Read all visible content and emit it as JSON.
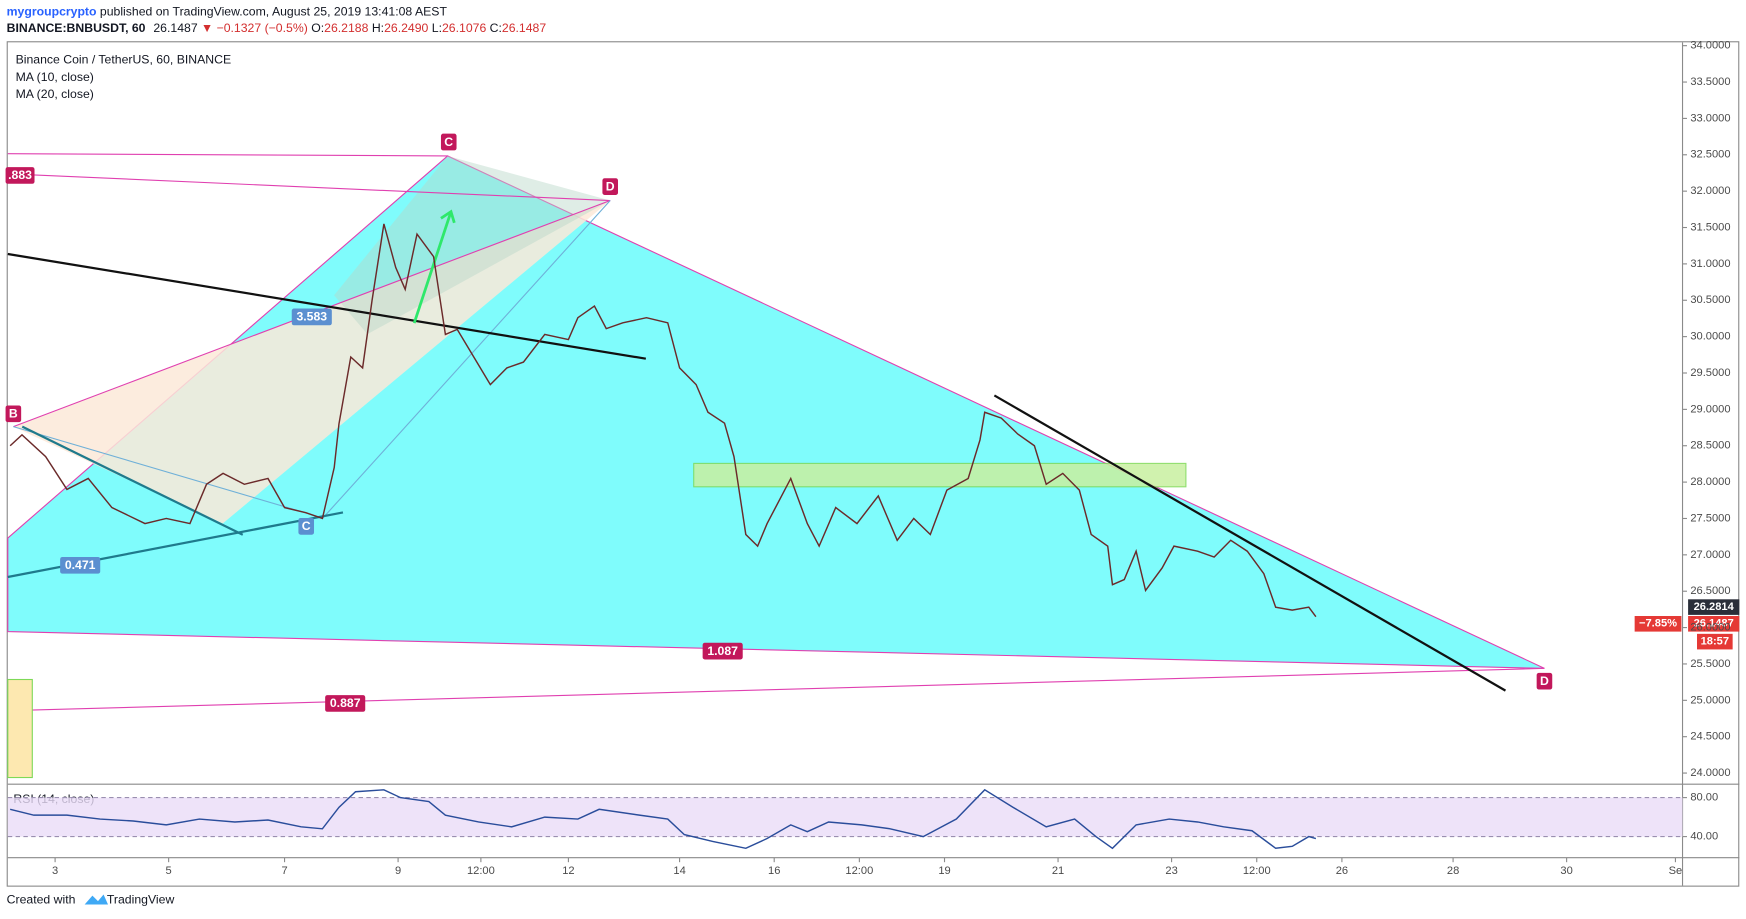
{
  "header": {
    "author": "mygroupcrypto",
    "published": "published on TradingView.com, August 25, 2019 13:41:08 AEST",
    "symbol": "BINANCE:BNBUSDT, 60",
    "last": "26.1487",
    "change": "▼ −0.1327 (−0.5%)",
    "ohlc": [
      {
        "label": "O:",
        "value": "26.2188"
      },
      {
        "label": "H:",
        "value": "26.2490"
      },
      {
        "label": "L:",
        "value": "26.1076"
      },
      {
        "label": "C:",
        "value": "26.1487"
      }
    ]
  },
  "footer": {
    "created": "Created with",
    "brand": "TradingView"
  },
  "chart_data": [
    {
      "type": "line",
      "title": "Binance Coin / TetherUS, 60, BINANCE",
      "indicators": [
        "MA (10, close)",
        "MA (20, close)"
      ],
      "color": "#6b2a2a",
      "grid": false,
      "x": [
        1,
        6,
        16,
        25,
        34,
        44,
        58,
        67,
        77,
        84,
        91,
        100,
        110,
        117,
        126,
        133,
        138,
        140,
        145,
        150,
        154,
        159,
        164,
        168,
        173,
        180,
        185,
        190,
        197,
        204,
        211,
        218,
        227,
        237,
        241,
        248,
        253,
        260,
        270,
        279,
        284,
        291,
        296,
        303,
        307,
        312,
        317,
        321,
        331,
        338,
        343,
        350,
        359,
        368,
        376,
        383,
        390,
        397,
        406,
        411,
        413,
        420,
        427,
        434,
        439,
        446,
        453,
        458,
        465,
        467,
        472,
        477,
        481,
        488,
        493,
        503,
        510,
        517,
        524,
        531,
        536,
        543,
        550,
        553
      ],
      "values": [
        28.5,
        28.65,
        28.35,
        27.9,
        28.05,
        27.65,
        27.43,
        27.5,
        27.43,
        27.97,
        28.12,
        27.97,
        28.05,
        27.65,
        27.58,
        27.5,
        28.2,
        28.8,
        29.72,
        29.57,
        30.5,
        31.55,
        30.95,
        30.65,
        31.41,
        31.1,
        30.03,
        30.1,
        29.72,
        29.34,
        29.57,
        29.65,
        30.03,
        29.96,
        30.26,
        30.42,
        30.11,
        30.19,
        30.26,
        30.19,
        29.57,
        29.34,
        28.96,
        28.81,
        28.35,
        27.28,
        27.12,
        27.43,
        28.05,
        27.43,
        27.12,
        27.65,
        27.43,
        27.81,
        27.2,
        27.5,
        27.28,
        27.89,
        28.05,
        28.58,
        28.96,
        28.88,
        28.66,
        28.5,
        27.97,
        28.12,
        27.89,
        27.28,
        27.12,
        26.59,
        26.66,
        27.05,
        26.51,
        26.82,
        27.12,
        27.05,
        26.97,
        27.2,
        27.05,
        26.74,
        26.28,
        26.24,
        26.28,
        26.15
      ],
      "xlim": [
        0,
        708
      ],
      "ylim": [
        23.862,
        34.046
      ],
      "yticks": [
        {
          "value": 24,
          "label": "24.0000"
        },
        {
          "value": 24.5,
          "label": "24.5000"
        },
        {
          "value": 25,
          "label": "25.0000"
        },
        {
          "value": 25.5,
          "label": "25.5000"
        },
        {
          "value": 26,
          "label": "26.0000"
        },
        {
          "value": 26.5,
          "label": "26.5000"
        },
        {
          "value": 27,
          "label": "27.0000"
        },
        {
          "value": 27.5,
          "label": "27.5000"
        },
        {
          "value": 28,
          "label": "28.0000"
        },
        {
          "value": 28.5,
          "label": "28.5000"
        },
        {
          "value": 29,
          "label": "29.0000"
        },
        {
          "value": 29.5,
          "label": "29.5000"
        },
        {
          "value": 30,
          "label": "30.0000"
        },
        {
          "value": 30.5,
          "label": "30.5000"
        },
        {
          "value": 31,
          "label": "31.0000"
        },
        {
          "value": 31.5,
          "label": "31.5000"
        },
        {
          "value": 32,
          "label": "32.0000"
        },
        {
          "value": 32.5,
          "label": "32.5000"
        },
        {
          "value": 33,
          "label": "33.0000"
        },
        {
          "value": 33.5,
          "label": "33.5000"
        },
        {
          "value": 34,
          "label": "34.0000"
        }
      ],
      "price_tags": [
        "26.2814",
        "−7.85%",
        "26.1487",
        "18:57"
      ],
      "annotations": [
        ".883",
        "3.583",
        "0.471",
        "1.087",
        "0.887",
        "B",
        "C",
        "D",
        "C",
        "D"
      ]
    },
    {
      "type": "line",
      "title": "RSI (14, close)",
      "color": "#2a4d9b",
      "band": true,
      "x": [
        1,
        11,
        25,
        39,
        53,
        67,
        81,
        96,
        110,
        124,
        133,
        140,
        147,
        159,
        166,
        178,
        185,
        199,
        213,
        227,
        241,
        250,
        267,
        279,
        286,
        298,
        312,
        321,
        331,
        338,
        347,
        361,
        373,
        387,
        401,
        413,
        425,
        439,
        451,
        460,
        467,
        477,
        491,
        503,
        514,
        526,
        536,
        543,
        550,
        553
      ],
      "values": [
        68,
        62,
        62,
        58,
        56,
        52,
        58,
        55,
        57,
        50,
        48,
        70,
        86,
        88,
        80,
        76,
        62,
        55,
        50,
        60,
        58,
        68,
        62,
        58,
        42,
        35,
        28,
        38,
        52,
        45,
        55,
        52,
        48,
        40,
        58,
        88,
        70,
        50,
        58,
        40,
        28,
        52,
        58,
        55,
        50,
        46,
        28,
        30,
        40,
        38
      ],
      "xlim": [
        0,
        708
      ],
      "ylim": [
        18.3,
        92.6
      ],
      "yticks": [
        {
          "value": 40,
          "label": "40.00"
        },
        {
          "value": 80,
          "label": "80.00"
        }
      ],
      "xticks": [
        {
          "value": 20,
          "label": "3"
        },
        {
          "value": 68,
          "label": "5"
        },
        {
          "value": 117,
          "label": "7"
        },
        {
          "value": 165,
          "label": "9"
        },
        {
          "value": 200,
          "label": "12:00"
        },
        {
          "value": 237,
          "label": "12"
        },
        {
          "value": 284,
          "label": "14"
        },
        {
          "value": 324,
          "label": "16"
        },
        {
          "value": 360,
          "label": "12:00"
        },
        {
          "value": 396,
          "label": "19"
        },
        {
          "value": 444,
          "label": "21"
        },
        {
          "value": 492,
          "label": "23"
        },
        {
          "value": 528,
          "label": "12:00"
        },
        {
          "value": 564,
          "label": "26"
        },
        {
          "value": 611,
          "label": "28"
        },
        {
          "value": 659,
          "label": "30"
        },
        {
          "value": 705,
          "label": "Se"
        }
      ]
    }
  ]
}
